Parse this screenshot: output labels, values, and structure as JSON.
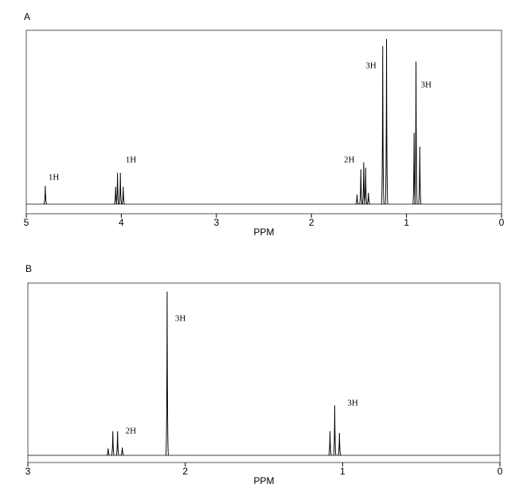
{
  "chart_data": [
    {
      "type": "nmr",
      "title": "A",
      "xlabel": "PPM",
      "xlim": [
        5,
        0
      ],
      "xticks": [
        5,
        4,
        3,
        2,
        1,
        0
      ],
      "groups": [
        {
          "label": "1H",
          "peaks": [
            {
              "x": 4.8,
              "h": 0.105
            }
          ]
        },
        {
          "label": "1H",
          "peaks": [
            {
              "x": 4.06,
              "h": 0.1
            },
            {
              "x": 4.04,
              "h": 0.18
            },
            {
              "x": 4.01,
              "h": 0.18
            },
            {
              "x": 3.98,
              "h": 0.1
            }
          ]
        },
        {
          "label": "2H",
          "peaks": [
            {
              "x": 1.52,
              "h": 0.055
            },
            {
              "x": 1.48,
              "h": 0.2
            },
            {
              "x": 1.45,
              "h": 0.24
            },
            {
              "x": 1.43,
              "h": 0.21
            },
            {
              "x": 1.4,
              "h": 0.065
            }
          ]
        },
        {
          "label": "3H",
          "peaks": [
            {
              "x": 1.25,
              "h": 0.91
            },
            {
              "x": 1.21,
              "h": 0.95
            }
          ]
        },
        {
          "label": "3H",
          "peaks": [
            {
              "x": 0.92,
              "h": 0.41
            },
            {
              "x": 0.9,
              "h": 0.82
            },
            {
              "x": 0.86,
              "h": 0.33
            }
          ]
        }
      ]
    },
    {
      "type": "nmr",
      "title": "B",
      "xlabel": "PPM",
      "xlim": [
        3,
        0
      ],
      "xticks": [
        3,
        2,
        1,
        0
      ],
      "groups": [
        {
          "label": "2H",
          "peaks": [
            {
              "x": 2.49,
              "h": 0.04
            },
            {
              "x": 2.46,
              "h": 0.14
            },
            {
              "x": 2.43,
              "h": 0.14
            },
            {
              "x": 2.4,
              "h": 0.045
            }
          ]
        },
        {
          "label": "3H",
          "peaks": [
            {
              "x": 2.115,
              "h": 0.95
            }
          ]
        },
        {
          "label": "3H",
          "peaks": [
            {
              "x": 1.08,
              "h": 0.14
            },
            {
              "x": 1.05,
              "h": 0.29
            },
            {
              "x": 1.02,
              "h": 0.13
            }
          ]
        }
      ]
    }
  ]
}
